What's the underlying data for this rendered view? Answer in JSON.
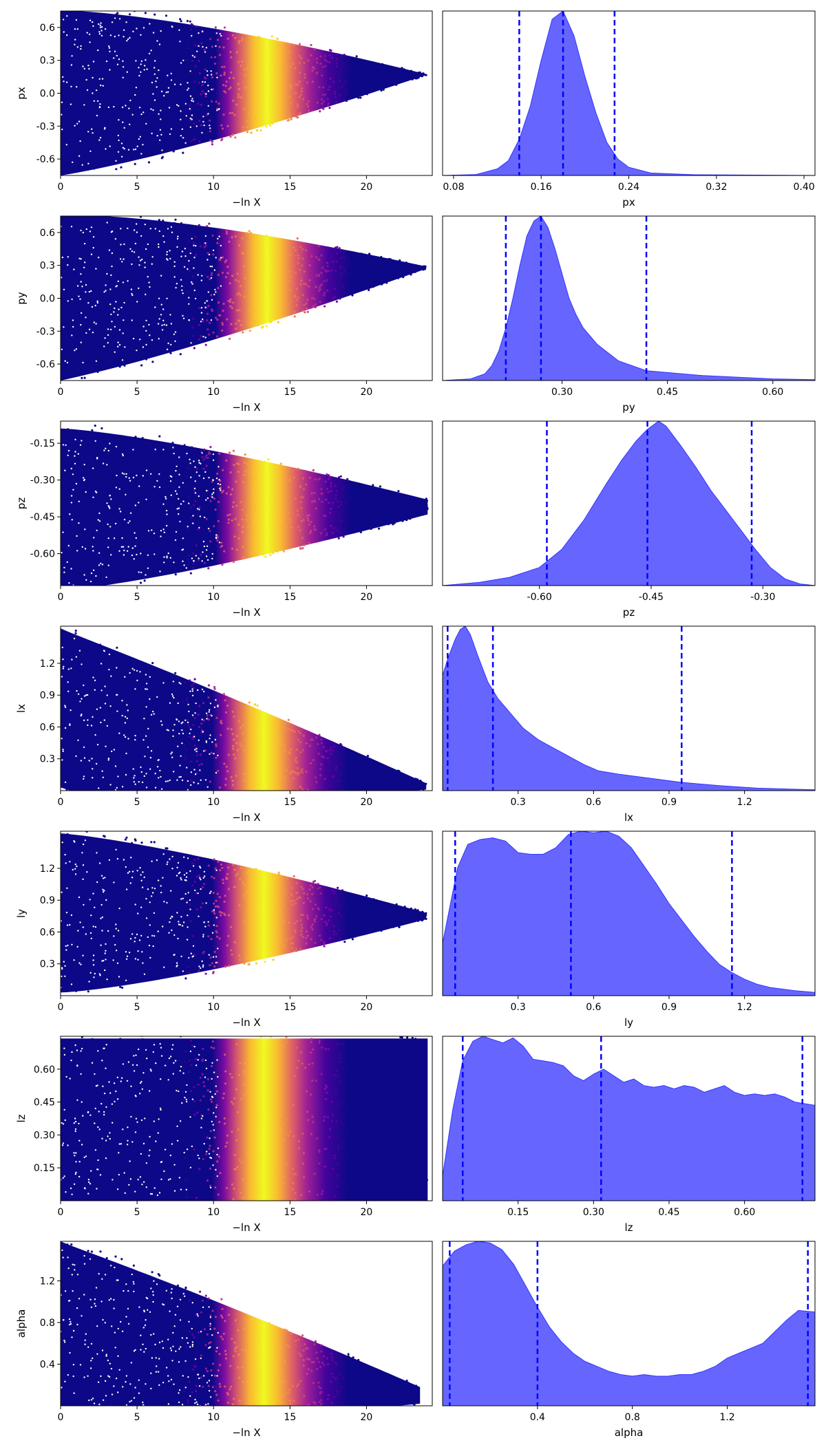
{
  "chart_data": [
    {
      "type": "scatter",
      "name": "px trace",
      "xlabel": "−ln X",
      "ylabel": "px",
      "xlim": [
        0,
        24.3
      ],
      "ylim": [
        -0.75,
        0.75
      ],
      "xticks": [
        "0",
        "5",
        "10",
        "15",
        "20"
      ],
      "yticks": [
        "0.6",
        "0.3",
        "0.0",
        "-0.3",
        "-0.6"
      ],
      "trend": {
        "center_start": 0.0,
        "center_end": 0.17,
        "half_width_start": 0.75,
        "half_width_end": 0.004,
        "max_x": 23.9
      },
      "colormap": "plasma",
      "peak_x": 13.5
    },
    {
      "type": "area",
      "name": "px posterior",
      "xlabel": "px",
      "xlim": [
        0.07,
        0.41
      ],
      "xticks": [
        "0.08",
        "0.16",
        "0.24",
        "0.32",
        "0.40"
      ],
      "quantiles": [
        0.14,
        0.18,
        0.227
      ],
      "x": [
        0.07,
        0.1,
        0.12,
        0.13,
        0.14,
        0.15,
        0.16,
        0.17,
        0.18,
        0.19,
        0.2,
        0.21,
        0.22,
        0.23,
        0.24,
        0.26,
        0.3,
        0.41
      ],
      "y": [
        0,
        0.005,
        0.04,
        0.09,
        0.22,
        0.42,
        0.7,
        0.95,
        1.0,
        0.85,
        0.6,
        0.38,
        0.2,
        0.1,
        0.05,
        0.015,
        0.004,
        0
      ]
    },
    {
      "type": "scatter",
      "name": "py trace",
      "xlabel": "−ln X",
      "ylabel": "py",
      "xlim": [
        0,
        24.3
      ],
      "ylim": [
        -0.75,
        0.75
      ],
      "xticks": [
        "0",
        "5",
        "10",
        "15",
        "20"
      ],
      "yticks": [
        "0.6",
        "0.3",
        "0.0",
        "-0.3",
        "-0.6"
      ],
      "trend": {
        "center_start": 0.0,
        "center_end": 0.28,
        "half_width_start": 0.75,
        "half_width_end": 0.01,
        "max_x": 23.9
      },
      "colormap": "plasma",
      "peak_x": 13.5
    },
    {
      "type": "area",
      "name": "py posterior",
      "xlabel": "py",
      "xlim": [
        0.13,
        0.66
      ],
      "xticks": [
        "0.30",
        "0.45",
        "0.60"
      ],
      "quantiles": [
        0.22,
        0.27,
        0.42
      ],
      "x": [
        0.13,
        0.17,
        0.19,
        0.2,
        0.21,
        0.22,
        0.23,
        0.24,
        0.25,
        0.26,
        0.27,
        0.28,
        0.29,
        0.3,
        0.31,
        0.32,
        0.33,
        0.35,
        0.38,
        0.42,
        0.5,
        0.6,
        0.66
      ],
      "y": [
        0,
        0.01,
        0.04,
        0.09,
        0.18,
        0.32,
        0.5,
        0.7,
        0.88,
        0.97,
        1.0,
        0.93,
        0.8,
        0.65,
        0.5,
        0.4,
        0.32,
        0.22,
        0.12,
        0.06,
        0.03,
        0.01,
        0.005
      ]
    },
    {
      "type": "scatter",
      "name": "pz trace",
      "xlabel": "−ln X",
      "ylabel": "pz",
      "xlim": [
        0,
        24.3
      ],
      "ylim": [
        -0.73,
        -0.06
      ],
      "xticks": [
        "0",
        "5",
        "10",
        "15",
        "20"
      ],
      "yticks": [
        "-0.15",
        "-0.30",
        "-0.45",
        "-0.60"
      ],
      "trend": {
        "center_start": -0.42,
        "center_end": -0.41,
        "half_width_start": 0.33,
        "half_width_end": 0.03,
        "max_x": 24
      },
      "colormap": "plasma",
      "peak_x": 13.5
    },
    {
      "type": "area",
      "name": "pz posterior",
      "xlabel": "pz",
      "xlim": [
        -0.73,
        -0.23
      ],
      "xticks": [
        "-0.60",
        "-0.45",
        "-0.30"
      ],
      "quantiles": [
        -0.59,
        -0.455,
        -0.315
      ],
      "x": [
        -0.73,
        -0.68,
        -0.64,
        -0.6,
        -0.57,
        -0.54,
        -0.51,
        -0.49,
        -0.47,
        -0.455,
        -0.44,
        -0.43,
        -0.41,
        -0.39,
        -0.37,
        -0.35,
        -0.33,
        -0.31,
        -0.29,
        -0.27,
        -0.25,
        -0.23
      ],
      "y": [
        0,
        0.02,
        0.05,
        0.11,
        0.22,
        0.4,
        0.62,
        0.76,
        0.88,
        0.95,
        1.0,
        0.97,
        0.85,
        0.72,
        0.58,
        0.46,
        0.34,
        0.22,
        0.11,
        0.04,
        0.01,
        0
      ]
    },
    {
      "type": "scatter",
      "name": "lx trace",
      "xlabel": "−ln X",
      "ylabel": "lx",
      "xlim": [
        0,
        24.3
      ],
      "ylim": [
        0,
        1.55
      ],
      "xticks": [
        "0",
        "5",
        "10",
        "15",
        "20"
      ],
      "yticks": [
        "1.2",
        "0.9",
        "0.6",
        "0.3"
      ],
      "trend": {
        "center_start": 0.78,
        "center_end": 0.04,
        "half_width_start": 0.75,
        "half_width_end": 0.03,
        "max_x": 23.9
      },
      "colormap": "plasma",
      "peak_x": 13.3
    },
    {
      "type": "area",
      "name": "lx posterior",
      "xlabel": "lx",
      "xlim": [
        0,
        1.48
      ],
      "xticks": [
        "0.3",
        "0.6",
        "0.9",
        "1.2"
      ],
      "quantiles": [
        0.02,
        0.2,
        0.95
      ],
      "x": [
        0,
        0.02,
        0.05,
        0.07,
        0.09,
        0.11,
        0.14,
        0.18,
        0.22,
        0.27,
        0.32,
        0.38,
        0.44,
        0.5,
        0.56,
        0.62,
        0.7,
        0.8,
        0.95,
        1.1,
        1.25,
        1.48
      ],
      "y": [
        0.7,
        0.8,
        0.92,
        0.98,
        1.0,
        0.95,
        0.82,
        0.66,
        0.56,
        0.47,
        0.38,
        0.31,
        0.26,
        0.21,
        0.16,
        0.12,
        0.1,
        0.08,
        0.05,
        0.03,
        0.015,
        0.005
      ]
    },
    {
      "type": "scatter",
      "name": "ly trace",
      "xlabel": "−ln X",
      "ylabel": "ly",
      "xlim": [
        0,
        24.3
      ],
      "ylim": [
        0,
        1.55
      ],
      "xticks": [
        "0",
        "5",
        "10",
        "15",
        "20"
      ],
      "yticks": [
        "1.2",
        "0.9",
        "0.6",
        "0.3"
      ],
      "trend": {
        "center_start": 0.78,
        "center_end": 0.75,
        "half_width_start": 0.75,
        "half_width_end": 0.03,
        "max_x": 23.9
      },
      "colormap": "plasma",
      "peak_x": 13.3
    },
    {
      "type": "area",
      "name": "ly posterior",
      "xlabel": "ly",
      "xlim": [
        0,
        1.48
      ],
      "xticks": [
        "0.3",
        "0.6",
        "0.9",
        "1.2"
      ],
      "quantiles": [
        0.05,
        0.51,
        1.15
      ],
      "x": [
        0,
        0.03,
        0.06,
        0.1,
        0.15,
        0.2,
        0.25,
        0.3,
        0.35,
        0.4,
        0.45,
        0.5,
        0.55,
        0.6,
        0.65,
        0.7,
        0.75,
        0.8,
        0.85,
        0.9,
        0.95,
        1.0,
        1.05,
        1.1,
        1.15,
        1.2,
        1.25,
        1.3,
        1.35,
        1.4,
        1.48
      ],
      "y": [
        0.32,
        0.55,
        0.78,
        0.92,
        0.95,
        0.96,
        0.94,
        0.87,
        0.86,
        0.86,
        0.9,
        0.98,
        1.0,
        0.99,
        1.0,
        0.97,
        0.9,
        0.79,
        0.68,
        0.56,
        0.46,
        0.36,
        0.27,
        0.19,
        0.14,
        0.1,
        0.07,
        0.05,
        0.04,
        0.03,
        0.02
      ]
    },
    {
      "type": "scatter",
      "name": "lz trace",
      "xlabel": "−ln X",
      "ylabel": "lz",
      "xlim": [
        0,
        24.3
      ],
      "ylim": [
        0,
        0.75
      ],
      "xticks": [
        "0",
        "5",
        "10",
        "15",
        "20"
      ],
      "yticks": [
        "0.60",
        "0.45",
        "0.30",
        "0.15"
      ],
      "trend": {
        "center_start": 0.37,
        "center_end": 0.37,
        "half_width_start": 0.37,
        "half_width_end": 0.37,
        "max_x": 24
      },
      "colormap": "plasma",
      "peak_x": 13.3
    },
    {
      "type": "area",
      "name": "lz posterior",
      "xlabel": "lz",
      "xlim": [
        0,
        0.74
      ],
      "xticks": [
        "0.15",
        "0.30",
        "0.45",
        "0.60"
      ],
      "quantiles": [
        0.04,
        0.315,
        0.715
      ],
      "x": [
        0,
        0.02,
        0.04,
        0.06,
        0.08,
        0.1,
        0.12,
        0.14,
        0.16,
        0.18,
        0.2,
        0.22,
        0.24,
        0.26,
        0.28,
        0.3,
        0.32,
        0.34,
        0.36,
        0.38,
        0.4,
        0.42,
        0.44,
        0.46,
        0.48,
        0.5,
        0.52,
        0.54,
        0.56,
        0.58,
        0.6,
        0.62,
        0.64,
        0.66,
        0.68,
        0.7,
        0.74
      ],
      "y": [
        0.15,
        0.55,
        0.85,
        0.97,
        1.0,
        0.98,
        0.96,
        0.99,
        0.94,
        0.86,
        0.85,
        0.84,
        0.82,
        0.76,
        0.73,
        0.77,
        0.8,
        0.76,
        0.72,
        0.74,
        0.7,
        0.69,
        0.7,
        0.68,
        0.7,
        0.69,
        0.66,
        0.68,
        0.7,
        0.66,
        0.64,
        0.65,
        0.64,
        0.65,
        0.63,
        0.6,
        0.58
      ]
    },
    {
      "type": "scatter",
      "name": "alpha trace",
      "xlabel": "−ln X",
      "ylabel": "alpha",
      "xlim": [
        0,
        24.3
      ],
      "ylim": [
        0,
        1.58
      ],
      "xticks": [
        "0",
        "5",
        "10",
        "15",
        "20"
      ],
      "yticks": [
        "1.2",
        "0.8",
        "0.4"
      ],
      "trend": {
        "center_start": 0.79,
        "center_end": 0.1,
        "half_width_start": 0.79,
        "half_width_end": 0.08,
        "max_x": 23.5
      },
      "colormap": "plasma",
      "peak_x": 13.3
    },
    {
      "type": "area",
      "name": "alpha posterior",
      "xlabel": "alpha",
      "xlim": [
        0,
        1.57
      ],
      "xticks": [
        "0.4",
        "0.8",
        "1.2"
      ],
      "quantiles": [
        0.03,
        0.4,
        1.54
      ],
      "x": [
        0,
        0.05,
        0.1,
        0.15,
        0.2,
        0.25,
        0.3,
        0.35,
        0.4,
        0.45,
        0.5,
        0.55,
        0.6,
        0.65,
        0.7,
        0.75,
        0.8,
        0.85,
        0.9,
        0.95,
        1.0,
        1.05,
        1.1,
        1.15,
        1.2,
        1.25,
        1.3,
        1.35,
        1.4,
        1.45,
        1.5,
        1.57
      ],
      "y": [
        0.85,
        0.94,
        0.98,
        1.0,
        0.99,
        0.95,
        0.86,
        0.73,
        0.6,
        0.48,
        0.39,
        0.32,
        0.27,
        0.24,
        0.21,
        0.19,
        0.18,
        0.19,
        0.18,
        0.18,
        0.19,
        0.19,
        0.21,
        0.24,
        0.29,
        0.32,
        0.35,
        0.38,
        0.45,
        0.52,
        0.58,
        0.57
      ]
    }
  ],
  "colors": {
    "dense_fill": "#6666ff",
    "dense_stroke": "#3333ff",
    "quantile_line": "#0000ff",
    "frame": "#000000",
    "colormap_stops": [
      "#0d0887",
      "#6a00a8",
      "#b12a90",
      "#e16462",
      "#fca636",
      "#f0f921"
    ]
  }
}
